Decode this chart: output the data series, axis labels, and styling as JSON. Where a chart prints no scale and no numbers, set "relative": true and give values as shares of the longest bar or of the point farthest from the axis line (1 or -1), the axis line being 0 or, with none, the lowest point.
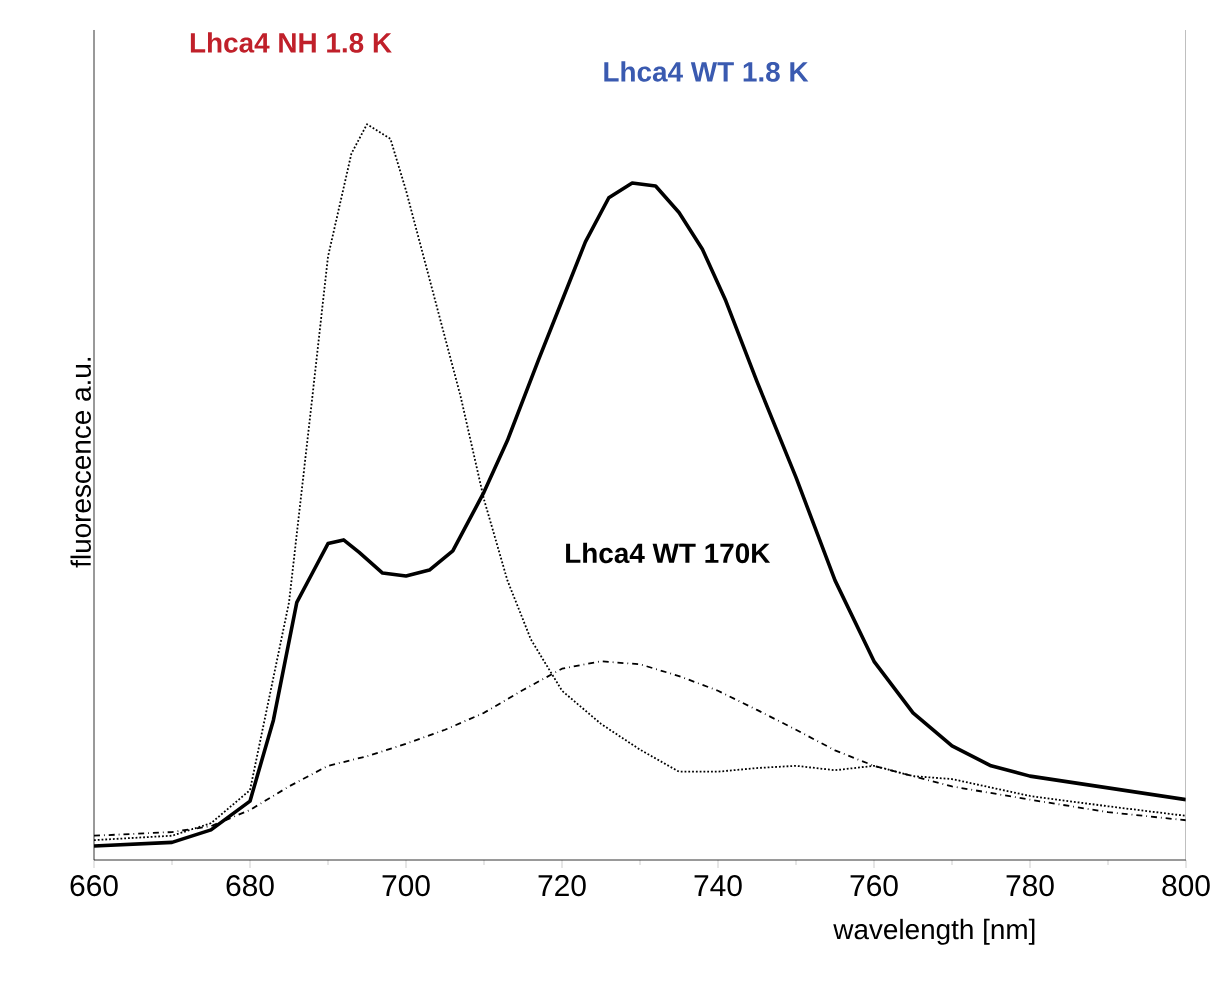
{
  "chart_data": {
    "type": "line",
    "xlabel": "wavelength  [nm]",
    "ylabel": "fluorescence a.u.",
    "relative": true,
    "xlim": [
      660,
      800
    ],
    "xticks": [
      660,
      680,
      700,
      720,
      740,
      760,
      780,
      800
    ],
    "marker": "none",
    "annotations": [
      "Lhca4 NH 1.8 K",
      "Lhca4 WT 1.8 K",
      "Lhca4 WT 170K"
    ],
    "series": [
      {
        "color": "#000000",
        "line_style": "dotted",
        "x": [
          660,
          670,
          675,
          680,
          685,
          688,
          690,
          693,
          695,
          698,
          700,
          703,
          707,
          710,
          713,
          716,
          720,
          725,
          730,
          735,
          740,
          745,
          750,
          755,
          760,
          765,
          770,
          780,
          790,
          800
        ],
        "values": [
          0.027,
          0.033,
          0.05,
          0.095,
          0.35,
          0.63,
          0.82,
          0.96,
          1.0,
          0.98,
          0.91,
          0.79,
          0.63,
          0.49,
          0.38,
          0.3,
          0.23,
          0.185,
          0.15,
          0.12,
          0.12,
          0.125,
          0.128,
          0.122,
          0.128,
          0.114,
          0.11,
          0.087,
          0.073,
          0.06
        ]
      },
      {
        "color": "#000000",
        "line_style": "solid",
        "x": [
          660,
          670,
          675,
          680,
          683,
          686,
          688,
          690,
          692,
          694,
          697,
          700,
          703,
          706,
          710,
          713,
          717,
          720,
          723,
          726,
          729,
          732,
          735,
          738,
          741,
          745,
          750,
          755,
          760,
          765,
          770,
          775,
          780,
          790,
          800
        ],
        "values": [
          0.019,
          0.024,
          0.041,
          0.08,
          0.19,
          0.35,
          0.39,
          0.43,
          0.435,
          0.418,
          0.39,
          0.386,
          0.394,
          0.42,
          0.5,
          0.57,
          0.68,
          0.76,
          0.84,
          0.9,
          0.92,
          0.916,
          0.88,
          0.83,
          0.76,
          0.65,
          0.52,
          0.38,
          0.27,
          0.2,
          0.155,
          0.128,
          0.114,
          0.098,
          0.082
        ]
      },
      {
        "color": "#000000",
        "line_style": "dashdot",
        "x": [
          660,
          670,
          675,
          680,
          685,
          690,
          695,
          700,
          705,
          710,
          715,
          720,
          725,
          730,
          735,
          740,
          745,
          750,
          755,
          760,
          770,
          780,
          790,
          800
        ],
        "values": [
          0.033,
          0.038,
          0.046,
          0.068,
          0.1,
          0.128,
          0.141,
          0.158,
          0.177,
          0.2,
          0.231,
          0.26,
          0.27,
          0.266,
          0.25,
          0.23,
          0.204,
          0.177,
          0.149,
          0.128,
          0.1,
          0.082,
          0.065,
          0.054
        ]
      }
    ]
  }
}
